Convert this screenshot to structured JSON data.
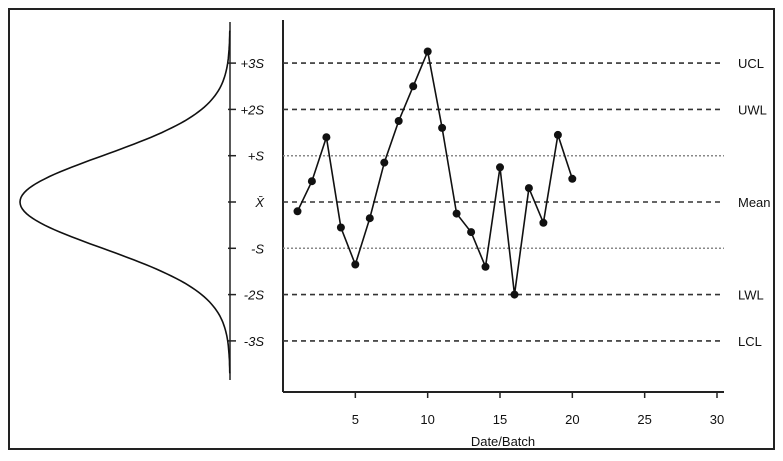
{
  "chart_data": {
    "type": "line",
    "title": "",
    "xlabel": "Date/Batch",
    "ylabel": "",
    "xlim": [
      0,
      30
    ],
    "xticks": [
      5,
      10,
      15,
      20,
      25,
      30
    ],
    "ylim": [
      -3.8,
      3.4
    ],
    "grid": false,
    "series": [
      {
        "x": [
          1,
          2,
          3,
          4,
          5,
          6,
          7,
          8,
          9,
          10,
          11,
          12,
          13,
          14,
          15,
          16,
          17,
          18,
          19,
          20
        ],
        "values": [
          -0.2,
          0.45,
          1.4,
          -0.55,
          -1.35,
          -0.35,
          0.85,
          1.75,
          2.5,
          3.25,
          1.6,
          -0.25,
          -0.65,
          -1.4,
          0.75,
          -2.0,
          0.3,
          -0.45,
          1.45,
          0.5
        ]
      }
    ],
    "reference_lines": [
      {
        "sigma": 3,
        "left_label": "+3S",
        "right_label": "UCL",
        "style": "dashed"
      },
      {
        "sigma": 2,
        "left_label": "+2S",
        "right_label": "UWL",
        "style": "dashed"
      },
      {
        "sigma": 1,
        "left_label": "+S",
        "right_label": "",
        "style": "dotted"
      },
      {
        "sigma": 0,
        "left_label": "X̄",
        "right_label": "Mean",
        "style": "dashed"
      },
      {
        "sigma": -1,
        "left_label": "-S",
        "right_label": "",
        "style": "dotted"
      },
      {
        "sigma": -2,
        "left_label": "-2S",
        "right_label": "LWL",
        "style": "dashed"
      },
      {
        "sigma": -3,
        "left_label": "-3S",
        "right_label": "LCL",
        "style": "dashed"
      }
    ],
    "distribution_curve": {
      "type": "normal",
      "orientation": "vertical"
    }
  }
}
